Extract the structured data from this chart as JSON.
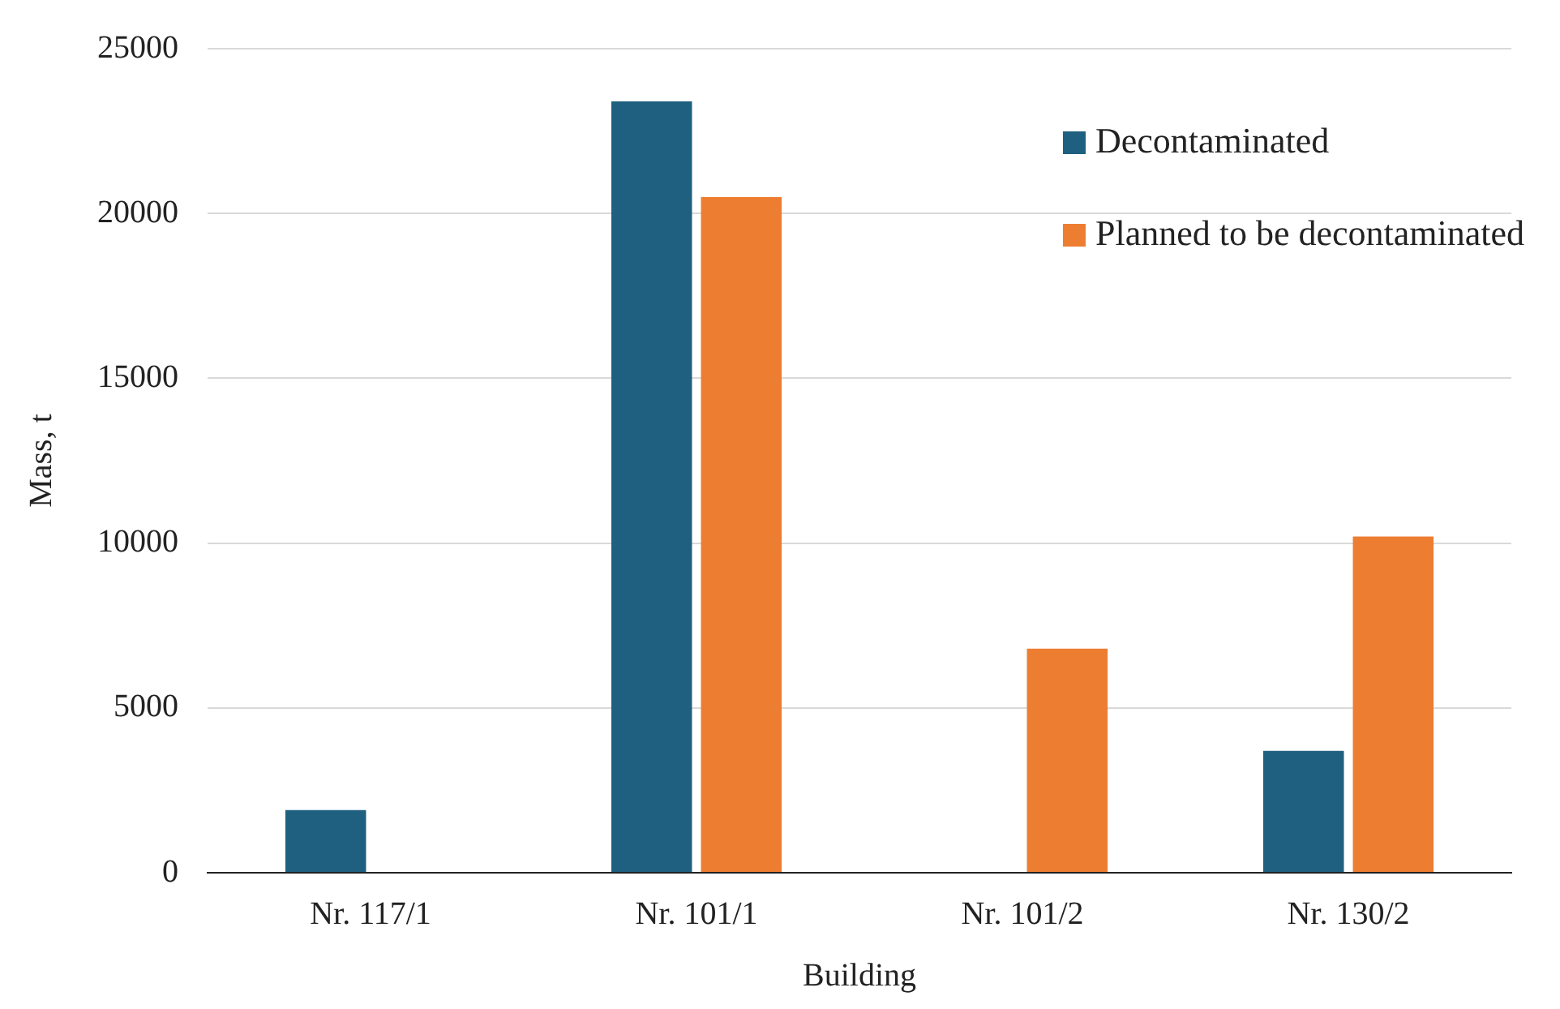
{
  "chart_data": {
    "type": "bar",
    "xlabel": "Building",
    "ylabel": "Mass, t",
    "categories": [
      "Nr. 117/1",
      "Nr. 101/1",
      "Nr. 101/2",
      "Nr. 130/2"
    ],
    "series": [
      {
        "name": "Decontaminated",
        "color": "#1f5f7f",
        "values": [
          1900,
          23400,
          null,
          3700
        ]
      },
      {
        "name": "Planned to be decontaminated",
        "color": "#ed7d31",
        "values": [
          null,
          20500,
          6800,
          10200
        ]
      }
    ],
    "ylim": [
      0,
      25000
    ],
    "yticks": [
      0,
      5000,
      10000,
      15000,
      20000,
      25000
    ],
    "grid": "y",
    "legend": "top right"
  }
}
